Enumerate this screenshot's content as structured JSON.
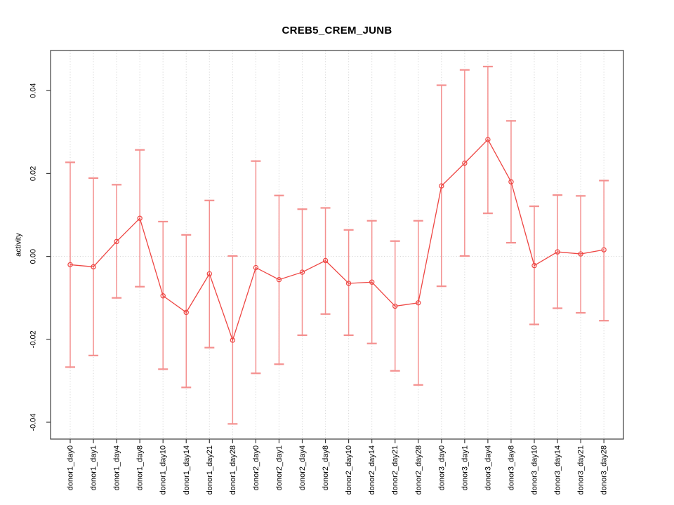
{
  "chart_data": {
    "type": "line",
    "title": "CREB5_CREM_JUNB",
    "xlabel": "",
    "ylabel": "activity",
    "categories": [
      "donor1_day0",
      "donor1_day1",
      "donor1_day4",
      "donor1_day8",
      "donor1_day10",
      "donor1_day14",
      "donor1_day21",
      "donor1_day28",
      "donor2_day0",
      "donor2_day1",
      "donor2_day4",
      "donor2_day8",
      "donor2_day10",
      "donor2_day14",
      "donor2_day21",
      "donor2_day28",
      "donor3_day0",
      "donor3_day1",
      "donor3_day4",
      "donor3_day8",
      "donor3_day10",
      "donor3_day14",
      "donor3_day21",
      "donor3_day28"
    ],
    "series": [
      {
        "name": "activity mean",
        "values": [
          -0.002,
          -0.0025,
          0.0036,
          0.0092,
          -0.0095,
          -0.0135,
          -0.0042,
          -0.0202,
          -0.0027,
          -0.0056,
          -0.0038,
          -0.001,
          -0.0065,
          -0.0062,
          -0.012,
          -0.0112,
          0.017,
          0.0225,
          0.0282,
          0.018,
          -0.0022,
          0.0011,
          0.0006,
          0.0016
        ],
        "upper": [
          0.0227,
          0.0189,
          0.0173,
          0.0257,
          0.0084,
          0.0052,
          0.0135,
          0.0001,
          0.023,
          0.0147,
          0.0114,
          0.0117,
          0.0064,
          0.0086,
          0.0037,
          0.0086,
          0.0413,
          0.045,
          0.0458,
          0.0327,
          0.0121,
          0.0148,
          0.0146,
          0.0183
        ],
        "lower": [
          -0.0267,
          -0.0239,
          -0.01,
          -0.0073,
          -0.0272,
          -0.0316,
          -0.022,
          -0.0404,
          -0.0282,
          -0.026,
          -0.019,
          -0.0139,
          -0.019,
          -0.021,
          -0.0276,
          -0.031,
          -0.0072,
          0.0001,
          0.0104,
          0.0033,
          -0.0164,
          -0.0125,
          -0.0136,
          -0.0155
        ]
      }
    ],
    "ytick_values": [
      -0.04,
      -0.02,
      0.0,
      0.02,
      0.04
    ],
    "ytick_labels": [
      "-0.04",
      "-0.02",
      "0.00",
      "0.02",
      "0.04"
    ],
    "ylim": [
      -0.044,
      0.05
    ],
    "grid": "dotted vertical line per category, dotted horizontal line at y=0",
    "legend": "none",
    "marker": "open-circle",
    "colors": {
      "series_line": "#ee4643",
      "error_bar": "#f4908f",
      "grid_line": "#d9d9d9",
      "axis_box": "#3c3c3c",
      "text": "#000000",
      "background": "#ffffff"
    }
  }
}
